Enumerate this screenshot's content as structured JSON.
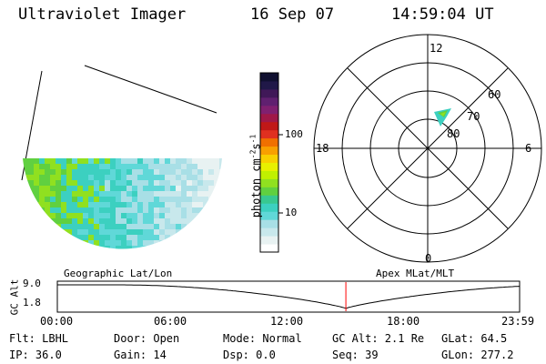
{
  "header": {
    "instrument": "Ultraviolet Imager",
    "date": "16 Sep 07",
    "time": "14:59:04 UT"
  },
  "colorbar": {
    "label": "photon cm",
    "label_sup1": "-2",
    "label_mid": "s",
    "label_sup2": "-1",
    "ticks": [
      "100",
      "10"
    ],
    "colors": [
      "#ffffff",
      "#e8f2f2",
      "#c8e8ec",
      "#a8dfe6",
      "#60d8d8",
      "#3cd0c0",
      "#38c890",
      "#60d040",
      "#90e020",
      "#c0f000",
      "#e8f000",
      "#f8d000",
      "#f8a000",
      "#f07000",
      "#e03020",
      "#c01818",
      "#a01848",
      "#802070",
      "#602070",
      "#401858",
      "#201848",
      "#101030"
    ]
  },
  "left_panel": {
    "caption": "Geographic Lat/Lon"
  },
  "polar_plot": {
    "caption": "Apex MLat/MLT",
    "mlt_labels": {
      "top": "12",
      "right": "6",
      "bottom": "0",
      "left": "18"
    },
    "mlat_labels": [
      "60",
      "70",
      "80"
    ]
  },
  "timeline": {
    "ylabel": "GC Alt",
    "yticks": [
      "9.0",
      "1.8"
    ],
    "xticks": [
      "00:00",
      "06:00",
      "12:00",
      "18:00",
      "23:59"
    ],
    "marker_hour": 14.98,
    "ymin": 1.8,
    "ymax": 9.0
  },
  "status": {
    "row1": {
      "flt": "Flt: LBHL",
      "door": "Door: Open",
      "mode": "Mode: Normal",
      "gcalt": "GC Alt: 2.1 Re",
      "glat": "GLat:  64.5"
    },
    "row2": {
      "ip": "IP: 36.0",
      "gain": "Gain: 14",
      "dsp": "Dsp:     0.0",
      "seq": "Seq: 39",
      "glon": "GLon: 277.2"
    }
  }
}
